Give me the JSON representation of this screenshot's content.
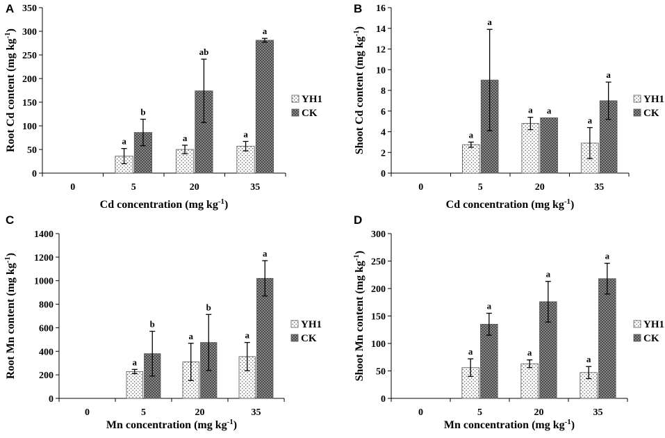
{
  "legend": {
    "yh1": "YH1",
    "ck": "CK"
  },
  "chart_data": [
    {
      "panel": "A",
      "type": "bar",
      "ylabel": "Root Cd content (mg kg⁻¹)",
      "xlabel": "Cd concentration (mg kg⁻¹)",
      "categories": [
        "0",
        "5",
        "20",
        "35"
      ],
      "ylim": [
        0,
        350
      ],
      "yticks": [
        0,
        50,
        100,
        150,
        200,
        250,
        300,
        350
      ],
      "series": [
        {
          "name": "YH1",
          "values": [
            0,
            36,
            50,
            57
          ],
          "errors": [
            0,
            16,
            9,
            10
          ],
          "letters": [
            "",
            "a",
            "a",
            "a"
          ]
        },
        {
          "name": "CK",
          "values": [
            0,
            86,
            174,
            281
          ],
          "errors": [
            0,
            28,
            67,
            4
          ],
          "letters": [
            "",
            "b",
            "ab",
            "a"
          ]
        }
      ]
    },
    {
      "panel": "B",
      "type": "bar",
      "ylabel": "Shoot Cd content (mg kg⁻¹)",
      "xlabel": "Cd concentration (mg kg⁻¹)",
      "categories": [
        "0",
        "5",
        "20",
        "35"
      ],
      "ylim": [
        0,
        16
      ],
      "yticks": [
        0,
        2,
        4,
        6,
        8,
        10,
        12,
        14,
        16
      ],
      "series": [
        {
          "name": "YH1",
          "values": [
            0,
            2.75,
            4.8,
            2.9
          ],
          "errors": [
            0,
            0.25,
            0.6,
            1.5
          ],
          "letters": [
            "",
            "a",
            "a",
            "a"
          ]
        },
        {
          "name": "CK",
          "values": [
            0,
            9.0,
            5.35,
            7.0
          ],
          "errors": [
            0,
            4.9,
            0,
            1.8
          ],
          "letters": [
            "",
            "a",
            "a",
            "a"
          ]
        }
      ]
    },
    {
      "panel": "C",
      "type": "bar",
      "ylabel": "Root Mn content (mg kg⁻¹)",
      "xlabel": "Mn concentration (mg kg⁻¹)",
      "categories": [
        "0",
        "5",
        "20",
        "35"
      ],
      "ylim": [
        0,
        1400
      ],
      "yticks": [
        0,
        200,
        400,
        600,
        800,
        1000,
        1200,
        1400
      ],
      "series": [
        {
          "name": "YH1",
          "values": [
            0,
            228,
            310,
            355
          ],
          "errors": [
            0,
            18,
            158,
            120
          ],
          "letters": [
            "",
            "a",
            "a",
            "a"
          ]
        },
        {
          "name": "CK",
          "values": [
            0,
            380,
            475,
            1020
          ],
          "errors": [
            0,
            190,
            238,
            150
          ],
          "letters": [
            "",
            "b",
            "b",
            "a"
          ]
        }
      ]
    },
    {
      "panel": "D",
      "type": "bar",
      "ylabel": "Shoot Mn content (mg kg⁻¹)",
      "xlabel": "Mn concentration (mg kg⁻¹)",
      "categories": [
        "0",
        "5",
        "20",
        "35"
      ],
      "ylim": [
        0,
        300
      ],
      "yticks": [
        0,
        50,
        100,
        150,
        200,
        250,
        300
      ],
      "series": [
        {
          "name": "YH1",
          "values": [
            0,
            56,
            63,
            47
          ],
          "errors": [
            0,
            16,
            7,
            11
          ],
          "letters": [
            "",
            "a",
            "a",
            "a"
          ]
        },
        {
          "name": "CK",
          "values": [
            0,
            135,
            176,
            218
          ],
          "errors": [
            0,
            20,
            37,
            28
          ],
          "letters": [
            "",
            "a",
            "a",
            "a"
          ]
        }
      ]
    }
  ]
}
